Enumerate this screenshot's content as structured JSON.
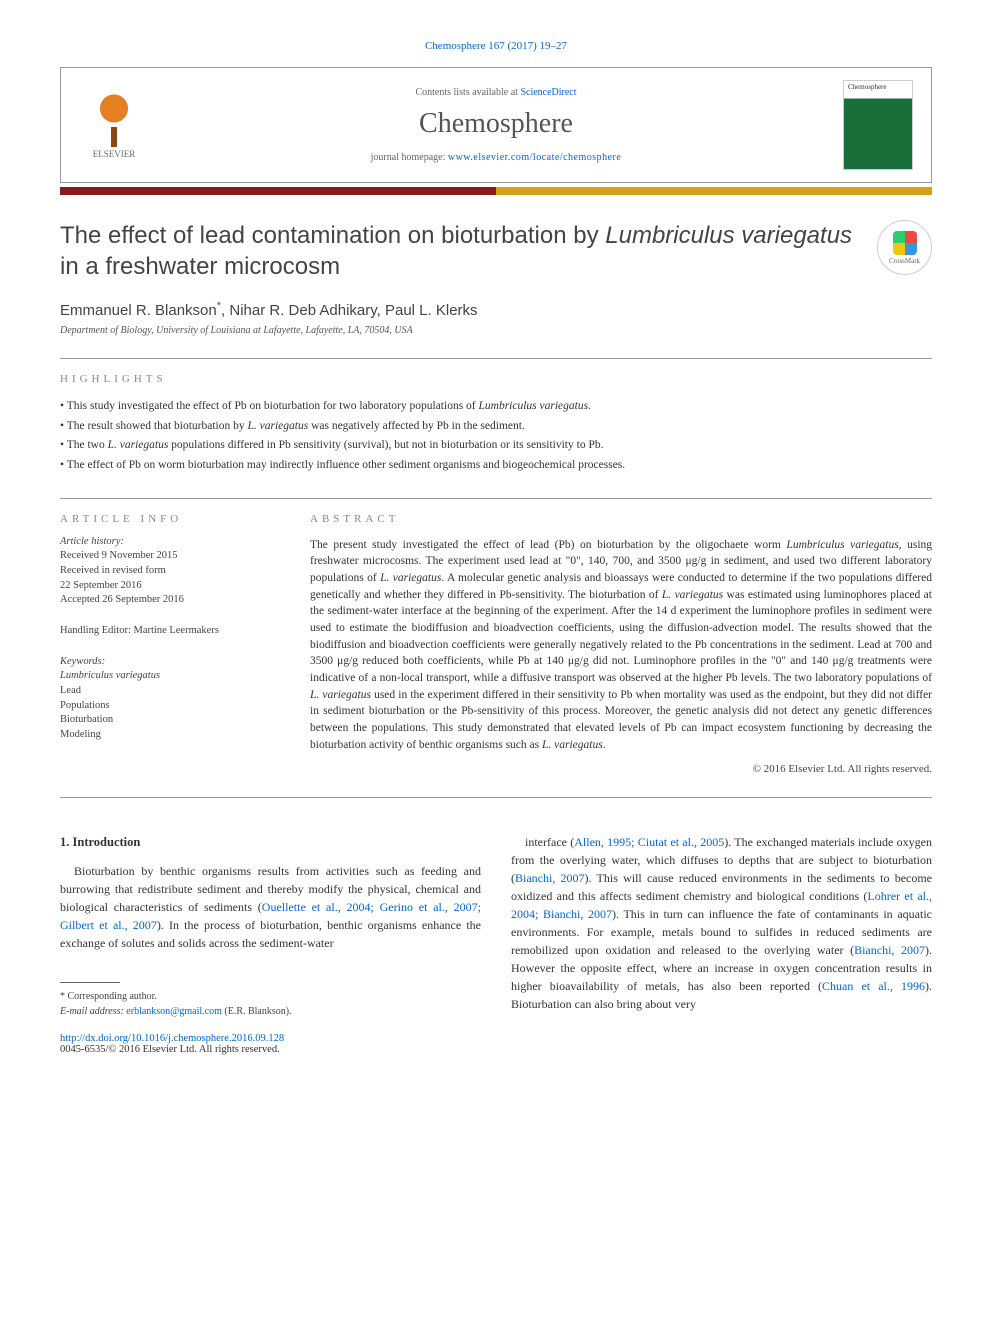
{
  "citation": "Chemosphere 167 (2017) 19–27",
  "header": {
    "contents_prefix": "Contents lists available at ",
    "contents_link": "ScienceDirect",
    "journal": "Chemosphere",
    "homepage_prefix": "journal homepage: ",
    "homepage_url": "www.elsevier.com/locate/chemosphere",
    "publisher": "ELSEVIER",
    "cover_label": "Chemosphere"
  },
  "crossmark": "CrossMark",
  "title_pre": "The effect of lead contamination on bioturbation by ",
  "title_em": "Lumbriculus variegatus",
  "title_post": " in a freshwater microcosm",
  "authors_html": "Emmanuel R. Blankson",
  "author_sup": "*",
  "authors_rest": ", Nihar R. Deb Adhikary, Paul L. Klerks",
  "affiliation": "Department of Biology, University of Louisiana at Lafayette, Lafayette, LA, 70504, USA",
  "highlights_label": "highlights",
  "highlights": [
    {
      "pre": "This study investigated the effect of Pb on bioturbation for two laboratory populations of ",
      "em": "Lumbriculus variegatus",
      "post": "."
    },
    {
      "pre": "The result showed that bioturbation by ",
      "em": "L. variegatus",
      "post": " was negatively affected by Pb in the sediment."
    },
    {
      "pre": "The two ",
      "em": "L. variegatus",
      "post": " populations differed in Pb sensitivity (survival), but not in bioturbation or its sensitivity to Pb."
    },
    {
      "pre": "The effect of Pb on worm bioturbation may indirectly influence other sediment organisms and biogeochemical processes.",
      "em": "",
      "post": ""
    }
  ],
  "article_info_label": "article info",
  "history_label": "Article history:",
  "history": {
    "received": "Received 9 November 2015",
    "revised1": "Received in revised form",
    "revised2": "22 September 2016",
    "accepted": "Accepted 26 September 2016"
  },
  "editor_label": "Handling Editor: Martine Leermakers",
  "keywords_label": "Keywords:",
  "keywords": [
    "Lumbriculus variegatus",
    "Lead",
    "Populations",
    "Bioturbation",
    "Modeling"
  ],
  "abstract_label": "abstract",
  "abstract": "The present study investigated the effect of lead (Pb) on bioturbation by the oligochaete worm Lumbriculus variegatus, using freshwater microcosms. The experiment used lead at \"0\", 140, 700, and 3500 μg/g in sediment, and used two different laboratory populations of L. variegatus. A molecular genetic analysis and bioassays were conducted to determine if the two populations differed genetically and whether they differed in Pb-sensitivity. The bioturbation of L. variegatus was estimated using luminophores placed at the sediment-water interface at the beginning of the experiment. After the 14 d experiment the luminophore profiles in sediment were used to estimate the biodiffusion and bioadvection coefficients, using the diffusion-advection model. The results showed that the biodiffusion and bioadvection coefficients were generally negatively related to the Pb concentrations in the sediment. Lead at 700 and 3500 μg/g reduced both coefficients, while Pb at 140 μg/g did not. Luminophore profiles in the \"0\" and 140 μg/g treatments were indicative of a non-local transport, while a diffusive transport was observed at the higher Pb levels. The two laboratory populations of L. variegatus used in the experiment differed in their sensitivity to Pb when mortality was used as the endpoint, but they did not differ in sediment bioturbation or the Pb-sensitivity of this process. Moreover, the genetic analysis did not detect any genetic differences between the populations. This study demonstrated that elevated levels of Pb can impact ecosystem functioning by decreasing the bioturbation activity of benthic organisms such as L. variegatus.",
  "copyright": "© 2016 Elsevier Ltd. All rights reserved.",
  "intro_heading": "1. Introduction",
  "intro_left_1": "Bioturbation by benthic organisms results from activities such as feeding and burrowing that redistribute sediment and thereby modify the physical, chemical and biological characteristics of sediments (",
  "intro_left_ref1": "Ouellette et al., 2004; Gerino et al., 2007; Gilbert et al., 2007",
  "intro_left_2": "). In the process of bioturbation, benthic organisms enhance the exchange of solutes and solids across the sediment-water",
  "intro_right_1": "interface (",
  "intro_right_ref1": "Allen, 1995; Ciutat et al., 2005",
  "intro_right_2": "). The exchanged materials include oxygen from the overlying water, which diffuses to depths that are subject to bioturbation (",
  "intro_right_ref2": "Bianchi, 2007",
  "intro_right_3": "). This will cause reduced environments in the sediments to become oxidized and this affects sediment chemistry and biological conditions (",
  "intro_right_ref3": "Lohrer et al., 2004; Bianchi, 2007",
  "intro_right_4": "). This in turn can influence the fate of contaminants in aquatic environments. For example, metals bound to sulfides in reduced sediments are remobilized upon oxidation and released to the overlying water (",
  "intro_right_ref4": "Bianchi, 2007",
  "intro_right_5": "). However the opposite effect, where an increase in oxygen concentration results in higher bioavailability of metals, has also been reported (",
  "intro_right_ref5": "Chuan et al., 1996",
  "intro_right_6": "). Bioturbation can also bring about very",
  "footer": {
    "corresp": "* Corresponding author.",
    "email_label": "E-mail address: ",
    "email": "erblankson@gmail.com",
    "email_who": " (E.R. Blankson)."
  },
  "doi": "http://dx.doi.org/10.1016/j.chemosphere.2016.09.128",
  "issn": "0045-6535/© 2016 Elsevier Ltd. All rights reserved.",
  "colors": {
    "link": "#0066cc",
    "bar_left": "#8b1a1a",
    "bar_right": "#d4a017"
  }
}
